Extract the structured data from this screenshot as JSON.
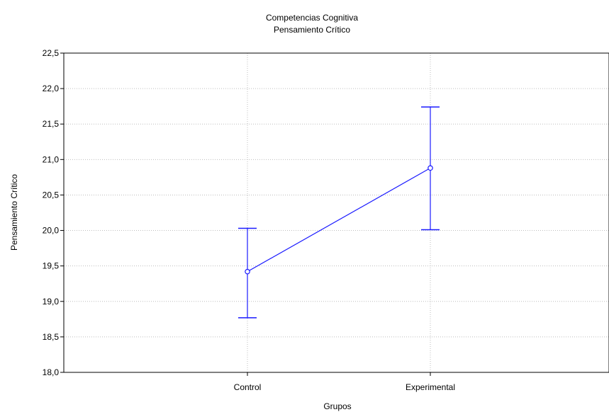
{
  "chart_data": {
    "type": "line",
    "title": "Competencias Cognitiva",
    "subtitle": "Pensamiento Crítico",
    "xlabel": "Grupos",
    "ylabel": "Pensamiento Crítico",
    "categories": [
      "Control",
      "Experimental"
    ],
    "values": [
      19.42,
      20.88
    ],
    "error_low": [
      18.77,
      20.01
    ],
    "error_high": [
      20.03,
      21.74
    ],
    "ylim": [
      18.0,
      22.5
    ],
    "yticks": [
      "18,0",
      "18,5",
      "19,0",
      "19,5",
      "20,0",
      "20,5",
      "21,0",
      "21,5",
      "22,0",
      "22,5"
    ],
    "ytick_values": [
      18.0,
      18.5,
      19.0,
      19.5,
      20.0,
      20.5,
      21.0,
      21.5,
      22.0,
      22.5
    ],
    "grid": true,
    "line_color": "#1a1aff"
  }
}
